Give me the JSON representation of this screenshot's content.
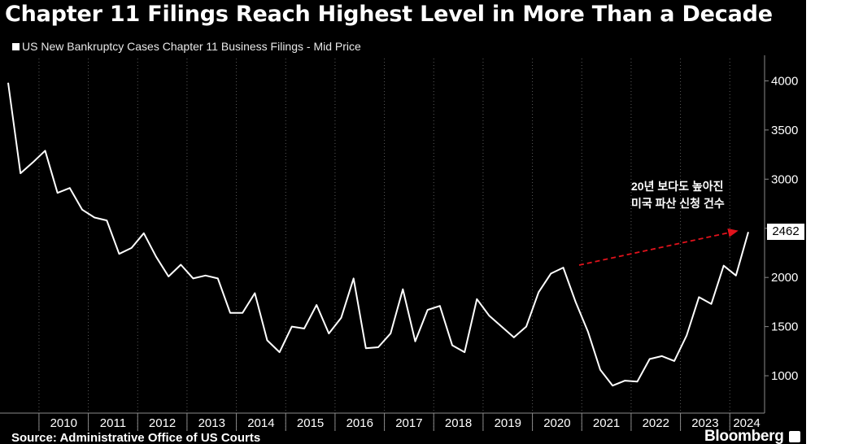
{
  "title": "Chapter 11 Filings Reach Highest Level in More Than a Decade",
  "legend_label": "US New Bankruptcy Cases Chapter 11 Business Filings - Mid Price",
  "source": "Source: Administrative Office of US Courts",
  "brand": "Bloomberg",
  "annotation": {
    "line1": "20년 보다도 높아진",
    "line2": "미국 파산 신청 건수"
  },
  "colors": {
    "background": "#000000",
    "line": "#ffffff",
    "arrow": "#e0131c",
    "grid": "#5a5a5a"
  },
  "chart_data": {
    "type": "line",
    "title": "Chapter 11 Filings Reach Highest Level in More Than a Decade",
    "series": [
      {
        "name": "US New Bankruptcy Cases Chapter 11 Business Filings - Mid Price",
        "x": [
          "2009Q2",
          "2009Q3",
          "2009Q4",
          "2010Q1",
          "2010Q2",
          "2010Q3",
          "2010Q4",
          "2011Q1",
          "2011Q2",
          "2011Q3",
          "2011Q4",
          "2012Q1",
          "2012Q2",
          "2012Q3",
          "2012Q4",
          "2013Q1",
          "2013Q2",
          "2013Q3",
          "2013Q4",
          "2014Q1",
          "2014Q2",
          "2014Q3",
          "2014Q4",
          "2015Q1",
          "2015Q2",
          "2015Q3",
          "2015Q4",
          "2016Q1",
          "2016Q2",
          "2016Q3",
          "2016Q4",
          "2017Q1",
          "2017Q2",
          "2017Q3",
          "2017Q4",
          "2018Q1",
          "2018Q2",
          "2018Q3",
          "2018Q4",
          "2019Q1",
          "2019Q2",
          "2019Q3",
          "2019Q4",
          "2020Q1",
          "2020Q2",
          "2020Q3",
          "2020Q4",
          "2021Q1",
          "2021Q2",
          "2021Q3",
          "2021Q4",
          "2022Q1",
          "2022Q2",
          "2022Q3",
          "2022Q4",
          "2023Q1",
          "2023Q2",
          "2023Q3",
          "2023Q4",
          "2024Q1",
          "2024Q2"
        ],
        "values": [
          3980,
          3060,
          3170,
          3290,
          2860,
          2910,
          2690,
          2610,
          2580,
          2240,
          2300,
          2450,
          2210,
          2010,
          2130,
          1990,
          2020,
          1990,
          1640,
          1640,
          1840,
          1360,
          1240,
          1500,
          1480,
          1720,
          1430,
          1590,
          1990,
          1280,
          1290,
          1430,
          1880,
          1350,
          1670,
          1710,
          1310,
          1240,
          1780,
          1610,
          1500,
          1390,
          1500,
          1850,
          2040,
          2100,
          1750,
          1450,
          1060,
          900,
          950,
          940,
          1170,
          1200,
          1150,
          1410,
          1800,
          1730,
          2120,
          2020,
          2462
        ]
      }
    ],
    "x_tick_labels": [
      "2010",
      "2011",
      "2012",
      "2013",
      "2014",
      "2015",
      "2016",
      "2017",
      "2018",
      "2019",
      "2020",
      "2021",
      "2022",
      "2023",
      "2024"
    ],
    "y_ticks": [
      1000,
      1500,
      2000,
      2500,
      3000,
      3500,
      4000
    ],
    "y_tick_labels": [
      "1000",
      "1500",
      "2000",
      "",
      "3000",
      "3500",
      "4000"
    ],
    "ylim": [
      620,
      4260
    ],
    "y_axis_side": "right",
    "last_value_label": "2462",
    "annotation": "20년 보다도 높아진 미국 파산 신청 건수",
    "grid": true,
    "grid_style": "dotted vertical at year boundaries",
    "legend": "top-left"
  }
}
